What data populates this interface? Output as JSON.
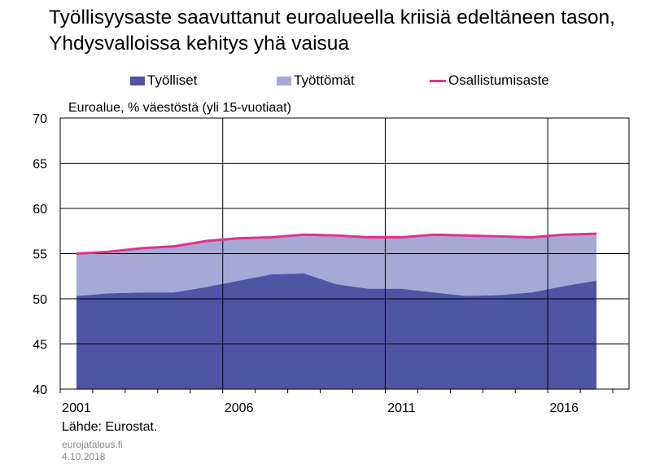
{
  "title": "Työllisyysaste saavuttanut euroalueella kriisiä edeltäneen tason, Yhdysvalloissa kehitys yhä vaisua",
  "source": "Lähde: Eurostat.",
  "site": "eurojatalous.fi",
  "date": "4.10.2018",
  "colors": {
    "employed": "#4e55a5",
    "unemployed": "#a4a9d6",
    "participation": "#e0338e"
  },
  "chart_data": {
    "type": "area",
    "subtitle": "Euroalue, % väestöstä (yli 15-vuotiaat)",
    "x": [
      2001,
      2002,
      2003,
      2004,
      2005,
      2006,
      2007,
      2008,
      2009,
      2010,
      2011,
      2012,
      2013,
      2014,
      2015,
      2016,
      2017
    ],
    "xticks": [
      "2001",
      "2006",
      "2011",
      "2016"
    ],
    "yticks": [
      "70",
      "65",
      "60",
      "55",
      "50",
      "45",
      "40"
    ],
    "ylim": [
      40,
      70
    ],
    "xlim": [
      2000.5,
      2018
    ],
    "grid": true,
    "legend_position": "top",
    "series": [
      {
        "name": "Työlliset",
        "kind": "area",
        "values": [
          50.3,
          50.6,
          50.7,
          50.7,
          51.3,
          52.0,
          52.7,
          52.8,
          51.6,
          51.1,
          51.1,
          50.7,
          50.3,
          50.4,
          50.7,
          51.4,
          52.0
        ]
      },
      {
        "name": "Työttömät",
        "kind": "stacked-area",
        "values": [
          4.7,
          4.6,
          4.9,
          5.1,
          5.1,
          4.7,
          4.1,
          4.3,
          5.4,
          5.7,
          5.7,
          6.4,
          6.7,
          6.5,
          6.1,
          5.7,
          5.2
        ]
      },
      {
        "name": "Osallistumisaste",
        "kind": "line",
        "values": [
          55.0,
          55.2,
          55.6,
          55.8,
          56.4,
          56.7,
          56.8,
          57.1,
          57.0,
          56.8,
          56.8,
          57.1,
          57.0,
          56.9,
          56.8,
          57.1,
          57.2
        ]
      }
    ]
  }
}
